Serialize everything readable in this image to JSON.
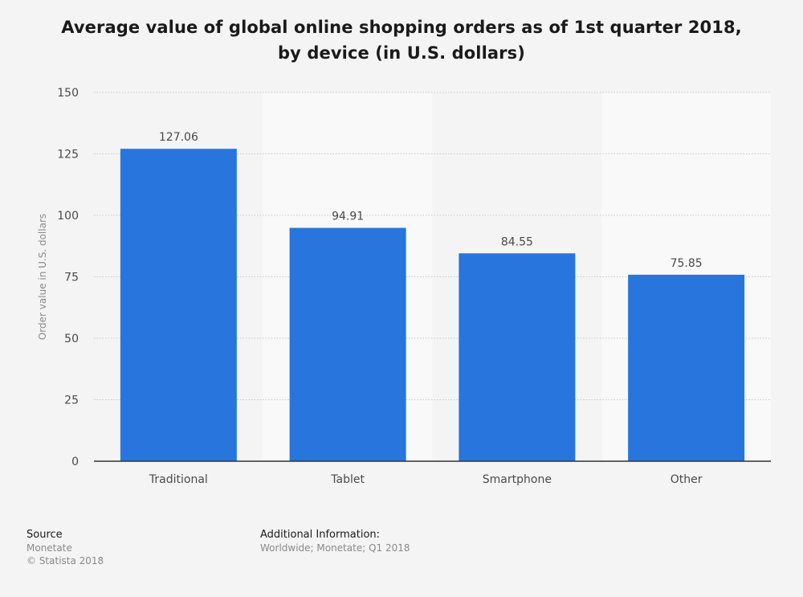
{
  "chart_data": {
    "type": "bar",
    "title": "Average value of global online shopping orders as of 1st quarter 2018, by device (in U.S. dollars)",
    "xlabel": "",
    "ylabel": "Order value in U.S. dollars",
    "categories": [
      "Traditional",
      "Tablet",
      "Smartphone",
      "Other"
    ],
    "values": [
      127.06,
      94.91,
      84.55,
      75.85
    ],
    "value_labels": [
      "127.06",
      "94.91",
      "84.55",
      "75.85"
    ],
    "ylim": [
      0,
      150
    ],
    "yticks": [
      0,
      25,
      50,
      75,
      100,
      125,
      150
    ],
    "grid": true,
    "bar_color": "#2876dd"
  },
  "footer": {
    "source_heading": "Source",
    "source_name": "Monetate",
    "copyright": "© Statista 2018",
    "additional_heading": "Additional Information:",
    "additional_text": "Worldwide; Monetate; Q1 2018"
  }
}
